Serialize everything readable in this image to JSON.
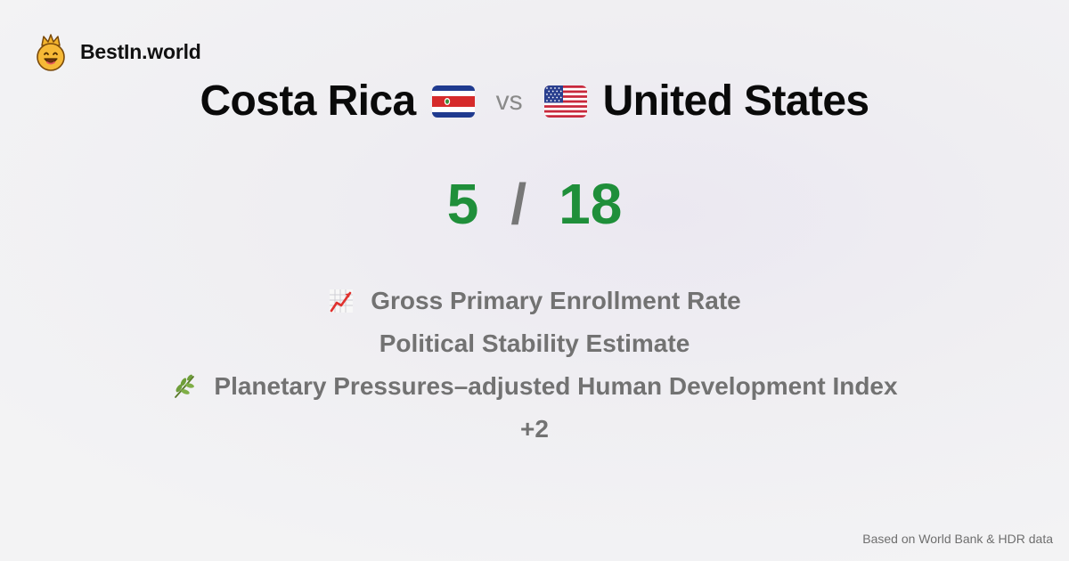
{
  "brand": {
    "name": "BestIn.world",
    "logo_icon": "smiling-crown-face-icon"
  },
  "comparison": {
    "left": {
      "name": "Costa Rica",
      "flag_icon": "costa-rica-flag-icon"
    },
    "vs_label": "vs",
    "right": {
      "name": "United States",
      "flag_icon": "united-states-flag-icon"
    }
  },
  "scores": {
    "left": "5",
    "separator": "/",
    "right": "18"
  },
  "metrics": [
    {
      "label": "Gross Primary Enrollment Rate",
      "icon": "chart-increasing-icon"
    },
    {
      "label": "Political Stability Estimate",
      "icon": ""
    },
    {
      "label": "Planetary Pressures–adjusted Human Development Index",
      "icon": "herb-icon"
    },
    {
      "label": "+2",
      "icon": ""
    }
  ],
  "footer": {
    "source": "Based on World Bank & HDR data"
  },
  "colors": {
    "score_green": "#1f8f3a",
    "muted_text": "#727272",
    "background": "#efeef2"
  }
}
